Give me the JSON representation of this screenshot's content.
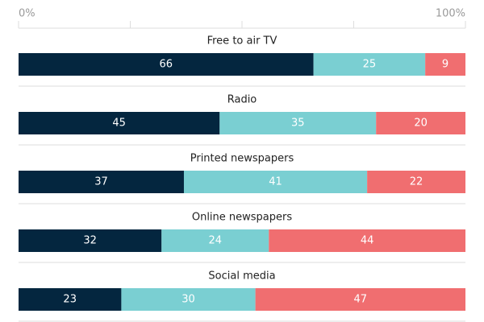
{
  "chart_data": {
    "type": "stacked-bar",
    "categories": [
      "Free to air TV",
      "Radio",
      "Printed newspapers",
      "Online newspapers",
      "Social media"
    ],
    "series": [
      {
        "color": "#04263f",
        "values": [
          66,
          45,
          37,
          32,
          23
        ]
      },
      {
        "color": "#7acfd2",
        "values": [
          25,
          35,
          41,
          24,
          30
        ]
      },
      {
        "color": "#f06e70",
        "values": [
          9,
          20,
          22,
          44,
          47
        ]
      }
    ],
    "xlim": [
      0,
      100
    ],
    "xticks": [
      {
        "value": 0,
        "label": "0%"
      },
      {
        "value": 100,
        "label": "100%"
      }
    ],
    "minor_xticks": [
      25,
      50,
      75
    ]
  }
}
